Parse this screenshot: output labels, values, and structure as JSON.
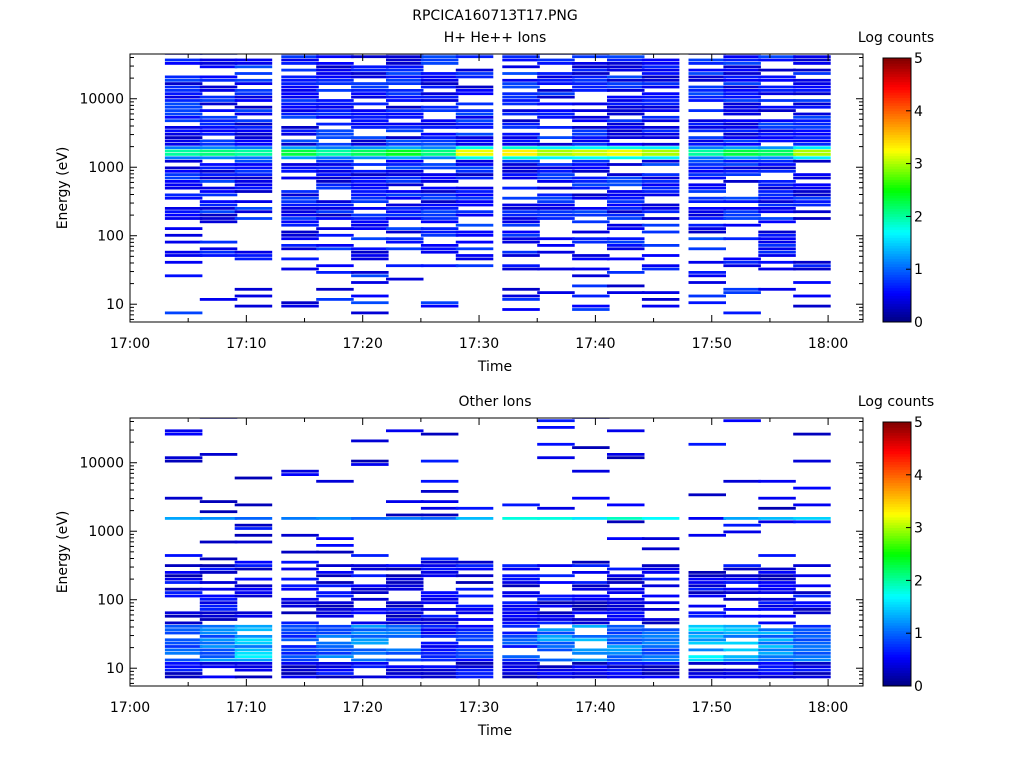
{
  "figure": {
    "filename": "RPCICA160713T17.PNG"
  },
  "chart_data": [
    {
      "type": "heatmap",
      "title": "H+ He++ Ions",
      "xlabel": "Time",
      "ylabel": "Energy (eV)",
      "y_scale": "log",
      "xlim": [
        "17:00",
        "18:03"
      ],
      "ylim": [
        5.5,
        45000
      ],
      "x_ticks": [
        "17:00",
        "17:10",
        "17:20",
        "17:30",
        "17:40",
        "17:50",
        "18:00"
      ],
      "y_ticks": [
        10,
        100,
        1000,
        10000
      ],
      "y_tick_labels": [
        "10",
        "100",
        "1000",
        "10000"
      ],
      "colorbar": {
        "label": "Log counts",
        "range": [
          0,
          5
        ],
        "ticks": [
          "0",
          "1",
          "2",
          "3",
          "4",
          "5"
        ]
      },
      "time_bins": [
        "17:03",
        "17:06",
        "17:09",
        "17:13",
        "17:16",
        "17:19",
        "17:22",
        "17:25",
        "17:28",
        "17:32",
        "17:35",
        "17:38",
        "17:41",
        "17:44",
        "17:48",
        "17:51",
        "17:54",
        "17:57"
      ],
      "time_bin_minutes": 3.2,
      "energy_bin_factor": 1.12,
      "energy_range": [
        7,
        45000
      ],
      "features": {
        "dense_above_eV": 150,
        "band_center_eV": 1450,
        "band_levels": [
          2.0,
          2.1,
          2.0,
          2.3,
          2.0,
          2.2,
          2.4,
          2.1,
          3.2,
          3.3,
          3.0,
          3.1,
          3.2,
          3.0,
          2.0,
          2.3,
          2.2,
          3.0
        ]
      }
    },
    {
      "type": "heatmap",
      "title": "Other Ions",
      "xlabel": "Time",
      "ylabel": "Energy (eV)",
      "y_scale": "log",
      "xlim": [
        "17:00",
        "18:03"
      ],
      "ylim": [
        5.5,
        45000
      ],
      "x_ticks": [
        "17:00",
        "17:10",
        "17:20",
        "17:30",
        "17:40",
        "17:50",
        "18:00"
      ],
      "y_ticks": [
        10,
        100,
        1000,
        10000
      ],
      "y_tick_labels": [
        "10",
        "100",
        "1000",
        "10000"
      ],
      "colorbar": {
        "label": "Log counts",
        "range": [
          0,
          5
        ],
        "ticks": [
          "0",
          "1",
          "2",
          "3",
          "4",
          "5"
        ]
      },
      "time_bins": [
        "17:03",
        "17:06",
        "17:09",
        "17:13",
        "17:16",
        "17:19",
        "17:22",
        "17:25",
        "17:28",
        "17:32",
        "17:35",
        "17:38",
        "17:41",
        "17:44",
        "17:48",
        "17:51",
        "17:54",
        "17:57"
      ],
      "time_bin_minutes": 3.2,
      "energy_bin_factor": 1.12,
      "energy_range": [
        7,
        45000
      ],
      "features": {
        "dense_below_eV": 300,
        "band_center_eV": 1450,
        "band_levels": [
          1.3,
          1.2,
          1.0,
          1.1,
          1.2,
          1.0,
          1.1,
          1.0,
          1.4,
          1.8,
          1.8,
          1.6,
          1.9,
          1.7,
          0.5,
          1.3,
          1.4,
          1.5
        ],
        "low_energy_levels": [
          1.2,
          1.3,
          1.7,
          1.0,
          1.2,
          1.5,
          1.3,
          0.8,
          0.9,
          1.0,
          1.4,
          1.6,
          1.3,
          1.2,
          1.7,
          1.6,
          1.5,
          1.2
        ]
      }
    }
  ]
}
